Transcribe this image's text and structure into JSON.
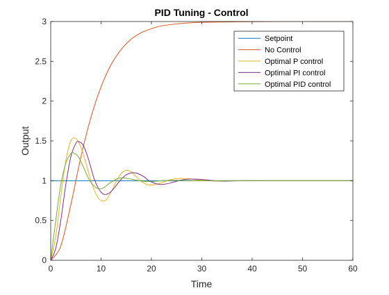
{
  "chart_data": {
    "type": "line",
    "title": "PID Tuning - Control",
    "xlabel": "Time",
    "ylabel": "Output",
    "xlim": [
      0,
      60
    ],
    "ylim": [
      0,
      3
    ],
    "xticks": [
      0,
      10,
      20,
      30,
      40,
      50,
      60
    ],
    "yticks": [
      0,
      0.5,
      1,
      1.5,
      2,
      2.5,
      3
    ],
    "xtick_labels": [
      "0",
      "10",
      "20",
      "30",
      "40",
      "50",
      "60"
    ],
    "ytick_labels": [
      "0",
      "0.5",
      "1",
      "1.5",
      "2",
      "2.5",
      "3"
    ],
    "grid": false,
    "legend_position": "top-right",
    "series": [
      {
        "name": "Setpoint",
        "color": "#0072BD",
        "x": [
          0,
          60
        ],
        "y": [
          1,
          1
        ]
      },
      {
        "name": "No Control",
        "color": "#D95319",
        "x": [
          0,
          2,
          4,
          6,
          8,
          10,
          12,
          14,
          16,
          18,
          20,
          22,
          25,
          28,
          30,
          35,
          40,
          45,
          50,
          55,
          60
        ],
        "y": [
          0,
          0.18,
          0.7,
          1.3,
          1.8,
          2.18,
          2.46,
          2.65,
          2.78,
          2.86,
          2.91,
          2.945,
          2.97,
          2.985,
          2.99,
          2.995,
          2.998,
          3.0,
          3.0,
          3.0,
          3.0
        ]
      },
      {
        "name": "Optimal P control",
        "color": "#EDB120",
        "x": [
          0,
          1,
          2,
          3,
          4,
          5,
          6,
          7,
          8,
          9,
          10,
          11,
          12,
          13,
          14,
          15,
          16,
          17,
          18,
          19,
          20,
          21,
          22,
          24,
          26,
          28,
          30,
          33,
          36,
          40,
          45,
          50,
          55,
          60
        ],
        "y": [
          0,
          0.3,
          0.8,
          1.25,
          1.5,
          1.53,
          1.42,
          1.22,
          1.0,
          0.83,
          0.75,
          0.76,
          0.86,
          0.99,
          1.09,
          1.13,
          1.11,
          1.05,
          0.99,
          0.955,
          0.945,
          0.955,
          0.975,
          1.015,
          1.03,
          1.02,
          1.005,
          0.995,
          1.0,
          1.0,
          1.0,
          1.0,
          1.0,
          1.0
        ]
      },
      {
        "name": "Optimal PI control",
        "color": "#7E2F8E",
        "x": [
          0,
          1,
          2,
          3,
          4,
          5,
          5.6,
          6.5,
          7.5,
          8.5,
          9.5,
          10.5,
          11.5,
          12.5,
          13.5,
          14.5,
          15.5,
          16.5,
          17.3,
          18.5,
          19.5,
          20.5,
          21.5,
          22.5,
          24,
          26,
          28,
          30,
          34,
          38,
          42,
          50,
          60
        ],
        "y": [
          0,
          0.15,
          0.5,
          0.95,
          1.3,
          1.47,
          1.49,
          1.44,
          1.27,
          1.05,
          0.9,
          0.83,
          0.84,
          0.9,
          0.98,
          1.05,
          1.09,
          1.1,
          1.09,
          1.05,
          1.0,
          0.97,
          0.955,
          0.955,
          0.975,
          1.01,
          1.02,
          1.015,
          0.995,
          1.0,
          1.0,
          1.0,
          1.0
        ]
      },
      {
        "name": "Optimal PID control",
        "color": "#77AC30",
        "x": [
          0,
          1,
          2,
          3,
          4,
          4.5,
          5.5,
          6.5,
          7.5,
          8.5,
          9.5,
          10.5,
          11.5,
          12.5,
          13.5,
          14.5,
          16,
          18,
          20,
          22,
          25,
          30,
          40,
          50,
          60
        ],
        "y": [
          0,
          0.5,
          0.95,
          1.22,
          1.34,
          1.35,
          1.3,
          1.17,
          1.03,
          0.94,
          0.9,
          0.91,
          0.96,
          1.0,
          1.03,
          1.035,
          1.02,
          0.995,
          0.99,
          1.0,
          1.005,
          1.0,
          1.0,
          1.0,
          1.0
        ]
      }
    ]
  }
}
